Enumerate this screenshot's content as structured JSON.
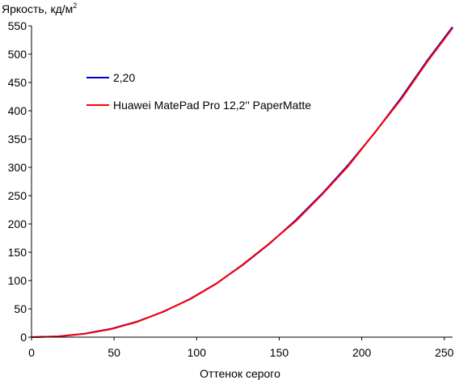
{
  "chart_data": {
    "type": "line",
    "ylabel_main": "Яркость, кд/м",
    "ylabel_sup": "2",
    "xlabel": "Оттенок серого",
    "xlim": [
      0,
      255
    ],
    "ylim": [
      0,
      550
    ],
    "x_ticks": [
      0,
      50,
      100,
      150,
      200,
      250
    ],
    "y_ticks": [
      0,
      50,
      100,
      150,
      200,
      250,
      300,
      350,
      400,
      450,
      500,
      550
    ],
    "grid": false,
    "legend_position": "upper-left inside plot",
    "series": [
      {
        "name": "2,20",
        "color": "#0000cc",
        "x": [
          0,
          16,
          32,
          48,
          64,
          80,
          96,
          112,
          128,
          144,
          160,
          176,
          192,
          208,
          224,
          240,
          255
        ],
        "y": [
          0,
          1.3,
          6.1,
          14.6,
          27.6,
          45,
          67.5,
          94.9,
          127.7,
          164.8,
          206.7,
          253.4,
          305,
          361.6,
          423.3,
          490.1,
          548
        ]
      },
      {
        "name": "Huawei MatePad Pro 12,2'' PaperMatte",
        "color": "#ff0000",
        "x": [
          0,
          16,
          32,
          48,
          64,
          80,
          96,
          112,
          128,
          144,
          160,
          176,
          192,
          208,
          224,
          240,
          255
        ],
        "y": [
          0,
          1.2,
          5.8,
          14,
          27,
          45.5,
          67,
          94.5,
          128.5,
          165.5,
          205,
          252,
          303,
          362,
          421,
          488,
          546
        ]
      }
    ]
  }
}
